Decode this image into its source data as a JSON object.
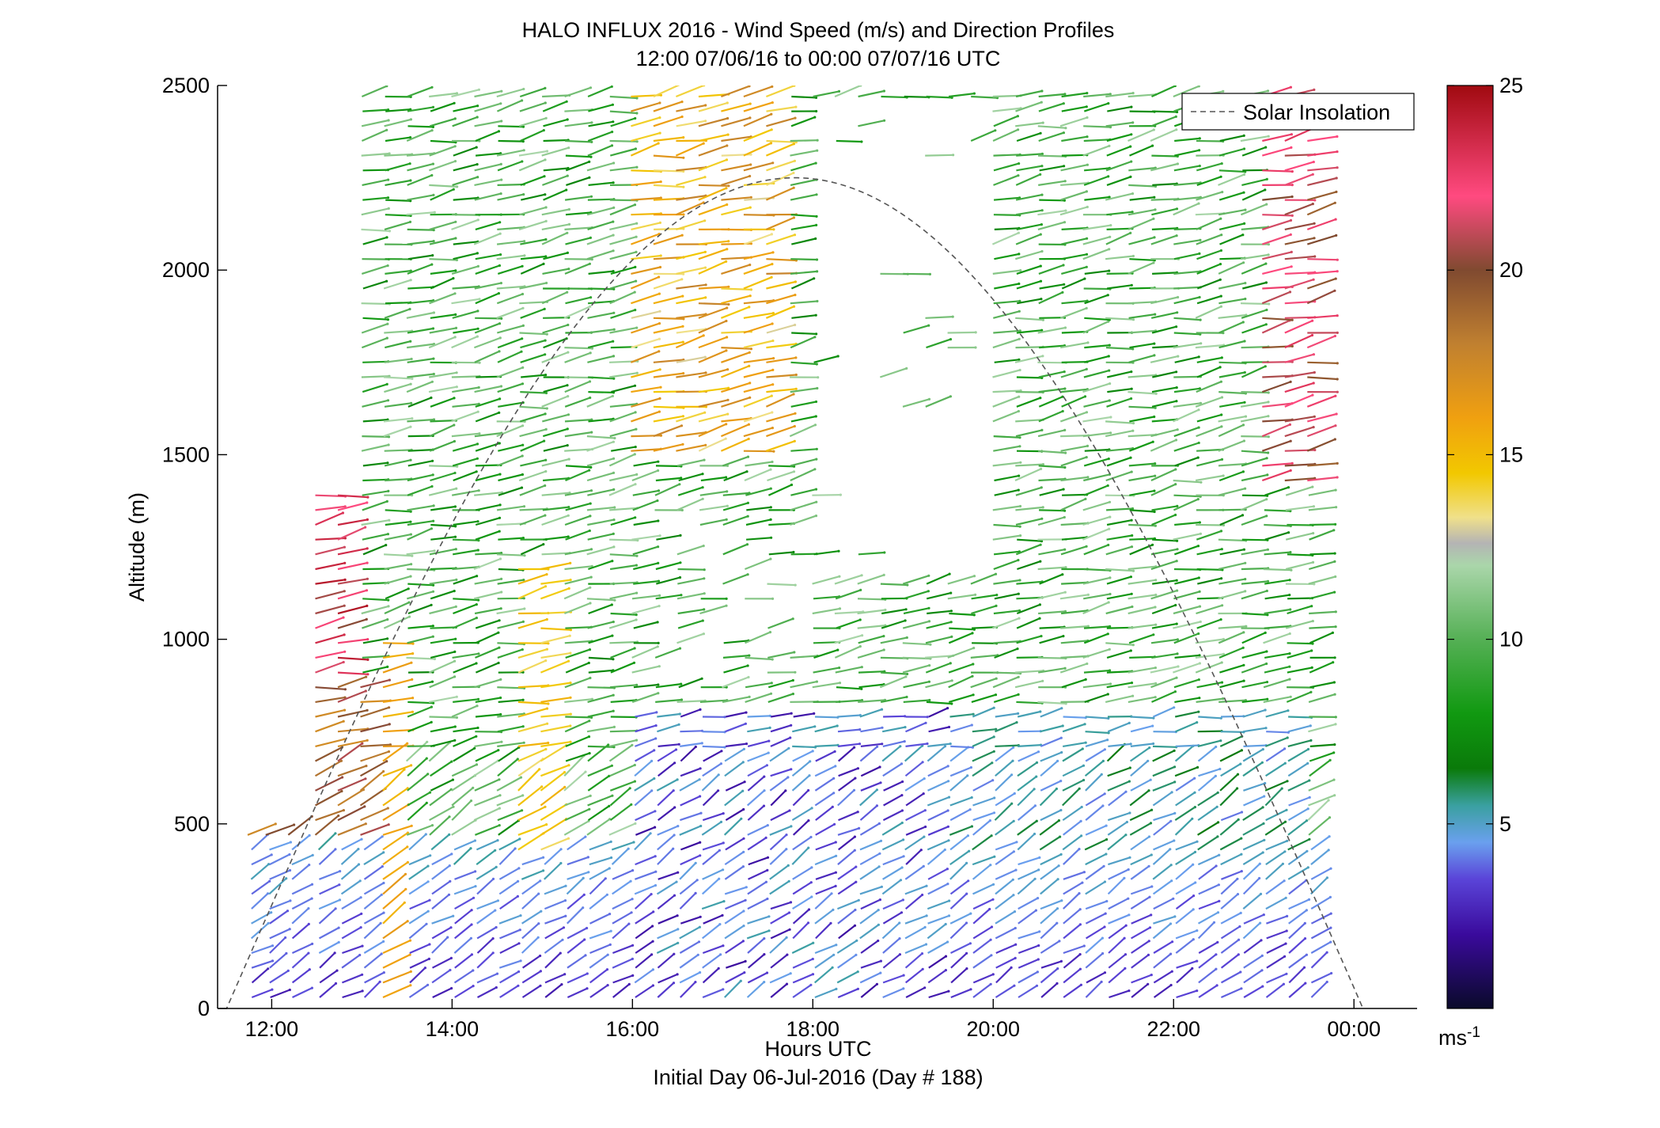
{
  "chart_data": {
    "type": "quiver",
    "title": "HALO INFLUX 2016 - Wind Speed (m/s) and Direction Profiles",
    "subtitle": "12:00 07/06/16 to 00:00 07/07/16  UTC",
    "xlabel": "Hours UTC",
    "xlabel2": "Initial Day 06-Jul-2016 (Day # 188)",
    "ylabel": "Altitude (m)",
    "xlim": [
      11.4,
      24.7
    ],
    "ylim": [
      0,
      2500
    ],
    "x_ticks": [
      12,
      14,
      16,
      18,
      20,
      22,
      24
    ],
    "x_tick_labels": [
      "12:00",
      "14:00",
      "16:00",
      "18:00",
      "20:00",
      "22:00",
      "00:00"
    ],
    "y_ticks": [
      0,
      500,
      1000,
      1500,
      2000,
      2500
    ],
    "y_tick_labels": [
      "0",
      "500",
      "1000",
      "1500",
      "2000",
      "2500"
    ],
    "grid": false,
    "legend": {
      "entries": [
        "Solar Insolation"
      ],
      "placement": "top-right",
      "line_style": "dashed",
      "color": "#555555"
    },
    "colorbar": {
      "range": [
        0,
        25
      ],
      "ticks": [
        5,
        10,
        15,
        20,
        25
      ],
      "tick_labels": [
        "5",
        "10",
        "15",
        "20",
        "25"
      ],
      "unit_base": "ms",
      "unit_exp": "-1",
      "stops": [
        {
          "v": 0,
          "c": "#0a0a2a"
        },
        {
          "v": 2,
          "c": "#3a0a9c"
        },
        {
          "v": 3.5,
          "c": "#5a44d8"
        },
        {
          "v": 4.5,
          "c": "#6aa0ee"
        },
        {
          "v": 5.5,
          "c": "#3aa0a0"
        },
        {
          "v": 6.5,
          "c": "#0a7a0a"
        },
        {
          "v": 8,
          "c": "#119911"
        },
        {
          "v": 10,
          "c": "#55b055"
        },
        {
          "v": 12,
          "c": "#aad6aa"
        },
        {
          "v": 12.6,
          "c": "#b4b4b4"
        },
        {
          "v": 13.3,
          "c": "#f0e08a"
        },
        {
          "v": 14.5,
          "c": "#f2c800"
        },
        {
          "v": 16,
          "c": "#f0a010"
        },
        {
          "v": 18,
          "c": "#c08030"
        },
        {
          "v": 20,
          "c": "#804a30"
        },
        {
          "v": 22,
          "c": "#ff4a80"
        },
        {
          "v": 25,
          "c": "#a00a10"
        }
      ]
    },
    "solar_insolation": {
      "peak_time_hours": 17.8,
      "peak_altitude_m": 2250,
      "half_width_hours": 6.3,
      "x_start": 11.4,
      "x_end": 24.7
    },
    "profile_times_hours": [
      11.9,
      12.1,
      12.35,
      12.65,
      12.9,
      13.15,
      13.4,
      13.65,
      13.9,
      14.15,
      14.4,
      14.65,
      14.9,
      15.15,
      15.4,
      15.65,
      15.9,
      16.15,
      16.4,
      16.65,
      16.9,
      17.15,
      17.4,
      17.65,
      17.9,
      18.15,
      18.4,
      18.65,
      18.9,
      19.15,
      19.4,
      19.65,
      19.9,
      20.15,
      20.4,
      20.65,
      20.9,
      21.15,
      21.4,
      21.65,
      21.9,
      22.15,
      22.4,
      22.65,
      22.9,
      23.15,
      23.4,
      23.65
    ],
    "profiles_summary": [
      {
        "time_range": "11.9-12.9",
        "altitude_range": [
          0,
          1400
        ],
        "speed_range_ms": [
          3,
          25
        ],
        "note": "low-level winds light, strong 20-25 m/s near 1000-1300 m"
      },
      {
        "time_range": "13.0-16.0",
        "altitude_range": [
          0,
          2500
        ],
        "speed_range_ms": [
          3,
          16
        ],
        "note": "mostly 8-12 m/s green, yellow 14-16 m/s bands"
      },
      {
        "time_range": "16.0-19.5",
        "altitude_range": [
          0,
          2500
        ],
        "speed_range_ms": [
          1,
          18
        ],
        "note": "weak 2-5 m/s below 800 m, gap 1200-2200 m"
      },
      {
        "time_range": "19.5-23.7",
        "altitude_range": [
          0,
          2500
        ],
        "speed_range_ms": [
          2,
          22
        ],
        "note": "purple/blue 2-5 m/s below 500 m, green 8-12 m/s above, pink 20-22 m/s aloft after 23:00"
      }
    ]
  }
}
